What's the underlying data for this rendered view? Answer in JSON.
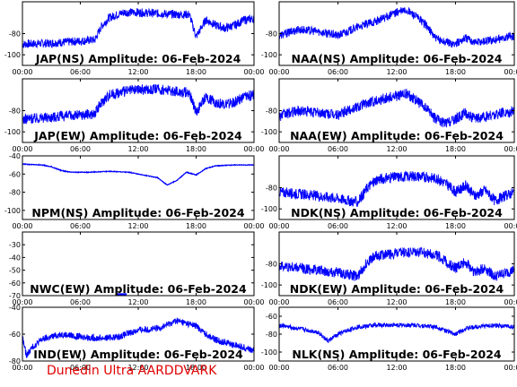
{
  "credit": "Dunedin Ultra AARDDVARK",
  "colors": {
    "trace": "#0000ff",
    "credit": "#e00000",
    "axes": "#000000"
  },
  "chart_data": [
    {
      "type": "line",
      "title": "JAP(NS) Amplitude: 06-Feb-2024",
      "ylim": [
        -110,
        -50
      ],
      "yticks": [
        "-80",
        "-100"
      ],
      "yticks_values": [
        -80,
        -100
      ],
      "xticks": [
        "00:00",
        "06:00",
        "12:00",
        "18:00",
        "00:00"
      ],
      "xlim": [
        0,
        24
      ],
      "series": [
        {
          "x": [
            0,
            3,
            6,
            7.5,
            8.2,
            9,
            10.5,
            12,
            14,
            16,
            17.3,
            18,
            19,
            20,
            21,
            22,
            23,
            24
          ],
          "values": [
            -90,
            -89,
            -87,
            -86,
            -73,
            -65,
            -60,
            -60,
            -61,
            -62,
            -62,
            -83,
            -67,
            -72,
            -75,
            -72,
            -67,
            -66
          ],
          "noise": 4
        }
      ]
    },
    {
      "type": "line",
      "title": "NAA(NS) Amplitude: 06-Feb-2024",
      "ylim": [
        -110,
        -50
      ],
      "yticks": [
        "-80",
        "-100"
      ],
      "yticks_values": [
        -80,
        -100
      ],
      "xticks": [
        "00:00",
        "06:00",
        "12:00",
        "18:00",
        "00:00"
      ],
      "xlim": [
        0,
        24
      ],
      "series": [
        {
          "x": [
            0,
            2,
            4,
            6,
            8,
            10,
            12,
            13,
            14,
            15,
            16,
            17,
            18,
            19,
            20,
            22,
            24
          ],
          "values": [
            -82,
            -76,
            -78,
            -82,
            -74,
            -68,
            -60,
            -58,
            -64,
            -72,
            -85,
            -88,
            -90,
            -84,
            -88,
            -86,
            -82
          ],
          "noise": 4
        }
      ]
    },
    {
      "type": "line",
      "title": "JAP(EW) Amplitude: 06-Feb-2024",
      "ylim": [
        -110,
        -50
      ],
      "yticks": [
        "-80",
        "-100"
      ],
      "yticks_values": [
        -80,
        -100
      ],
      "xticks": [
        "00:00",
        "06:00",
        "12:00",
        "18:00",
        "00:00"
      ],
      "xlim": [
        0,
        24
      ],
      "series": [
        {
          "x": [
            0,
            3,
            6,
            7.5,
            8.2,
            9,
            10.5,
            12,
            14,
            16,
            17.3,
            18,
            19,
            20,
            21,
            22,
            23,
            24
          ],
          "values": [
            -88,
            -86,
            -84,
            -83,
            -72,
            -65,
            -62,
            -60,
            -60,
            -62,
            -63,
            -82,
            -67,
            -72,
            -74,
            -72,
            -67,
            -65
          ],
          "noise": 5
        }
      ]
    },
    {
      "type": "line",
      "title": "NAA(EW) Amplitude: 06-Feb-2024",
      "ylim": [
        -110,
        -50
      ],
      "yticks": [
        "-80",
        "-100"
      ],
      "yticks_values": [
        -80,
        -100
      ],
      "xticks": [
        "00:00",
        "06:00",
        "12:00",
        "18:00",
        "00:00"
      ],
      "xlim": [
        0,
        24
      ],
      "series": [
        {
          "x": [
            0,
            2,
            4,
            6,
            8,
            10,
            12,
            13,
            14,
            15,
            16,
            17,
            18,
            19,
            20,
            22,
            24
          ],
          "values": [
            -85,
            -80,
            -82,
            -84,
            -76,
            -70,
            -66,
            -64,
            -70,
            -78,
            -88,
            -92,
            -88,
            -82,
            -88,
            -84,
            -80
          ],
          "noise": 5
        }
      ]
    },
    {
      "type": "line",
      "title": "NPM(NS) Amplitude: 06-Feb-2024",
      "ylim": [
        -110,
        -40
      ],
      "yticks": [
        "-40",
        "-60",
        "-80",
        "-100"
      ],
      "yticks_values": [
        -40,
        -60,
        -80,
        -100
      ],
      "xticks": [
        "00:00",
        "06:00",
        "12:00",
        "18:00",
        "00:00"
      ],
      "xlim": [
        0,
        24
      ],
      "series": [
        {
          "x": [
            0,
            2,
            3,
            4,
            5,
            7,
            9,
            11,
            13,
            14,
            15,
            16,
            17,
            18,
            19,
            20,
            22,
            24
          ],
          "values": [
            -49,
            -50,
            -52,
            -56,
            -58,
            -58,
            -57,
            -58,
            -62,
            -64,
            -72,
            -67,
            -58,
            -61,
            -54,
            -51,
            -50,
            -50
          ],
          "noise": 0.4
        }
      ]
    },
    {
      "type": "line",
      "title": "NDK(NS) Amplitude: 06-Feb-2024",
      "ylim": [
        -110,
        -50
      ],
      "yticks": [
        "-80",
        "-100"
      ],
      "yticks_values": [
        -80,
        -100
      ],
      "xticks": [
        "00:00",
        "06:00",
        "12:00",
        "18:00",
        "00:00"
      ],
      "xlim": [
        0,
        24
      ],
      "series": [
        {
          "x": [
            0,
            2,
            4,
            6,
            8,
            9,
            10,
            12,
            14,
            16,
            17,
            18,
            19,
            20,
            21,
            22,
            24
          ],
          "values": [
            -84,
            -86,
            -88,
            -90,
            -94,
            -80,
            -72,
            -70,
            -69,
            -71,
            -76,
            -84,
            -78,
            -88,
            -82,
            -92,
            -84
          ],
          "noise": 5
        }
      ]
    },
    {
      "type": "line",
      "title": "NWC(EW) Amplitude: 06-Feb-2024",
      "ylim": [
        -70,
        -20
      ],
      "yticks": [
        "-30",
        "-40",
        "-50",
        "-60",
        "-70"
      ],
      "yticks_values": [
        -30,
        -40,
        -50,
        -60,
        -70
      ],
      "xticks": [
        "00:00",
        "06:00",
        "12:00",
        "18:00",
        "00:00"
      ],
      "xlim": [
        0,
        24
      ],
      "series": [
        {
          "x": [
            9.8,
            10.8
          ],
          "values": [
            -69,
            -69
          ],
          "noise": 0
        }
      ]
    },
    {
      "type": "line",
      "title": "NDK(EW) Amplitude: 06-Feb-2024",
      "ylim": [
        -110,
        -50
      ],
      "yticks": [
        "-80",
        "-100"
      ],
      "yticks_values": [
        -80,
        -100
      ],
      "xticks": [
        "00:00",
        "06:00",
        "12:00",
        "18:00",
        "00:00"
      ],
      "xlim": [
        0,
        24
      ],
      "series": [
        {
          "x": [
            0,
            2,
            4,
            6,
            8,
            9,
            10,
            12,
            14,
            16,
            17,
            18,
            19,
            20,
            21,
            22,
            24
          ],
          "values": [
            -82,
            -84,
            -86,
            -88,
            -92,
            -78,
            -72,
            -70,
            -69,
            -71,
            -78,
            -84,
            -78,
            -88,
            -84,
            -92,
            -86
          ],
          "noise": 5
        }
      ]
    },
    {
      "type": "line",
      "title": "IND(EW) Amplitude: 06-Feb-2024",
      "ylim": [
        -80,
        -40
      ],
      "yticks": [
        "-40",
        "-60",
        "-80"
      ],
      "yticks_values": [
        -40,
        -60,
        -80
      ],
      "xticks": [
        "00:00",
        "06:00",
        "12:00",
        "18:00",
        "00:00"
      ],
      "xlim": [
        0,
        24
      ],
      "series": [
        {
          "x": [
            0,
            0.4,
            1,
            2,
            4,
            6,
            8,
            10,
            12,
            14,
            16,
            18,
            19,
            20,
            22,
            24
          ],
          "values": [
            -62,
            -76,
            -70,
            -64,
            -60,
            -62,
            -63,
            -62,
            -57,
            -56,
            -50,
            -54,
            -60,
            -64,
            -68,
            -72
          ],
          "noise": 2.5
        }
      ]
    },
    {
      "type": "line",
      "title": "NLK(NS) Amplitude: 06-Feb-2024",
      "ylim": [
        -110,
        -50
      ],
      "yticks": [
        "-60",
        "-80",
        "-100"
      ],
      "yticks_values": [
        -60,
        -80,
        -100
      ],
      "xticks": [
        "00:00",
        "06:00",
        "12:00",
        "18:00",
        "00:00"
      ],
      "xlim": [
        0,
        24
      ],
      "series": [
        {
          "x": [
            0,
            2,
            4,
            5,
            6,
            7,
            8,
            10,
            12,
            14,
            16,
            17,
            18,
            19,
            20,
            22,
            24
          ],
          "values": [
            -70,
            -74,
            -78,
            -88,
            -80,
            -76,
            -72,
            -70,
            -70,
            -70,
            -72,
            -76,
            -80,
            -74,
            -72,
            -70,
            -72
          ],
          "noise": 2.5
        }
      ]
    }
  ]
}
